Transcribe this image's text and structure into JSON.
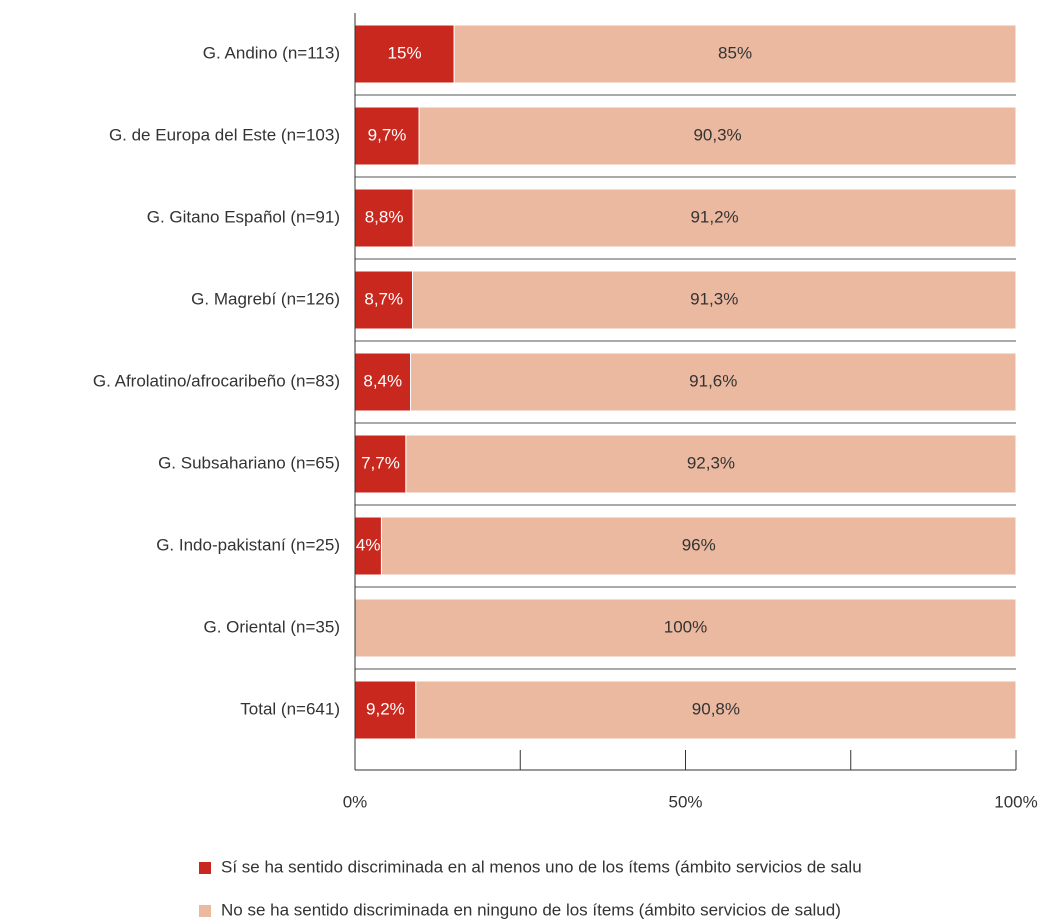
{
  "chart_data": {
    "type": "stacked_barh",
    "categories": [
      "G. Andino (n=113)",
      "G. de Europa del Este (n=103)",
      "G. Gitano Español (n=91)",
      "G. Magrebí (n=126)",
      "G. Afrolatino/afrocaribeño (n=83)",
      "G. Subsahariano (n=65)",
      "G. Indo-pakistaní (n=25)",
      "G. Oriental (n=35)",
      "Total (n=641)"
    ],
    "series": [
      {
        "name": "Sí se ha sentido discriminada en al menos uno de los ítems (ámbito servicios de salu",
        "color": "#c8281e",
        "values": [
          15,
          9.7,
          8.8,
          8.7,
          8.4,
          7.7,
          4,
          0,
          9.2
        ],
        "value_labels": [
          "15%",
          "9,7%",
          "8,8%",
          "8,7%",
          "8,4%",
          "7,7%",
          "4%",
          null,
          "9,2%"
        ]
      },
      {
        "name": "No se ha sentido discriminada en ninguno de los ítems (ámbito servicios de salud)",
        "color": "#ebb9a0",
        "values": [
          85,
          90.3,
          91.2,
          91.3,
          91.6,
          92.3,
          96,
          100,
          90.8
        ],
        "value_labels": [
          "85%",
          "90,3%",
          "91,2%",
          "91,3%",
          "91,6%",
          "92,3%",
          "96%",
          "100%",
          "90,8%"
        ]
      }
    ],
    "xlim": [
      0,
      100
    ],
    "xticks": [
      {
        "value": 0,
        "label": "0%"
      },
      {
        "value": 50,
        "label": "50%"
      },
      {
        "value": 100,
        "label": "100%"
      }
    ],
    "xminor_ticks": [
      25,
      75
    ]
  }
}
